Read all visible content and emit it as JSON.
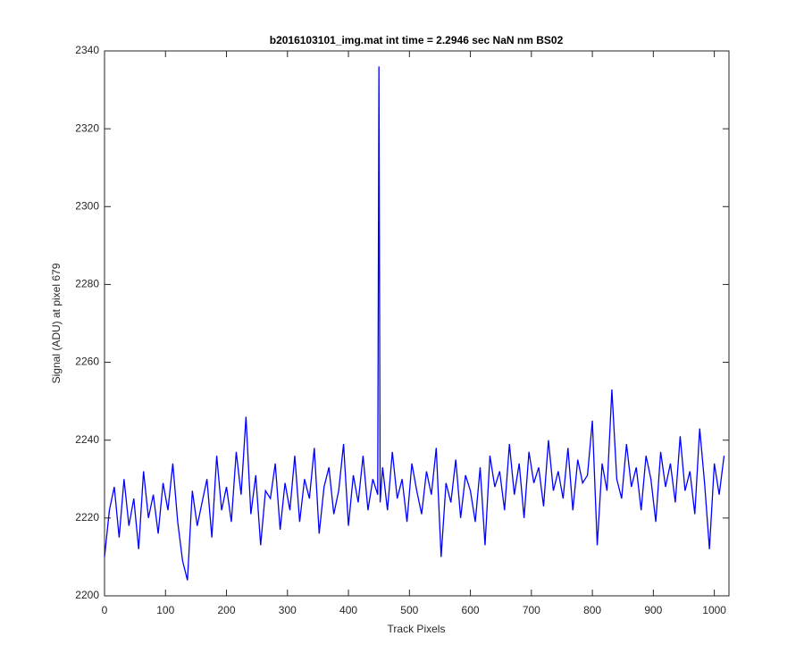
{
  "chart_data": {
    "type": "line",
    "title": "b2016103101_img.mat int time = 2.2946 sec  NaN nm BS02",
    "x_label": "Track Pixels",
    "y_label": "Signal (ADU) at pixel 679",
    "xlim": [
      0,
      1024
    ],
    "ylim": [
      2200,
      2340
    ],
    "xticks": [
      0,
      100,
      200,
      300,
      400,
      500,
      600,
      700,
      800,
      900,
      1000
    ],
    "yticks": [
      2200,
      2220,
      2240,
      2260,
      2280,
      2300,
      2320,
      2340
    ],
    "grid": false,
    "series": [
      {
        "color": "#0000ff",
        "x": [
          0,
          8,
          16,
          24,
          32,
          40,
          48,
          56,
          64,
          72,
          80,
          88,
          96,
          104,
          112,
          120,
          128,
          136,
          144,
          152,
          160,
          168,
          176,
          184,
          192,
          200,
          208,
          216,
          224,
          232,
          240,
          248,
          256,
          264,
          272,
          280,
          288,
          296,
          304,
          312,
          320,
          328,
          336,
          344,
          352,
          360,
          368,
          376,
          384,
          392,
          400,
          408,
          416,
          424,
          432,
          440,
          448,
          450,
          452,
          456,
          464,
          472,
          480,
          488,
          496,
          504,
          512,
          520,
          528,
          536,
          544,
          552,
          560,
          568,
          576,
          584,
          592,
          600,
          608,
          616,
          624,
          632,
          640,
          648,
          656,
          664,
          672,
          680,
          688,
          696,
          704,
          712,
          720,
          728,
          736,
          744,
          752,
          760,
          768,
          776,
          784,
          792,
          800,
          808,
          816,
          824,
          832,
          840,
          848,
          856,
          864,
          872,
          880,
          888,
          896,
          904,
          912,
          920,
          928,
          936,
          944,
          952,
          960,
          968,
          976,
          984,
          992,
          1000,
          1008,
          1016
        ],
        "values": [
          2210,
          2222,
          2228,
          2215,
          2230,
          2218,
          2225,
          2212,
          2232,
          2220,
          2226,
          2216,
          2229,
          2222,
          2234,
          2219,
          2209,
          2204,
          2227,
          2218,
          2224,
          2230,
          2215,
          2236,
          2222,
          2228,
          2219,
          2237,
          2226,
          2246,
          2221,
          2231,
          2213,
          2227,
          2225,
          2234,
          2217,
          2229,
          2222,
          2236,
          2219,
          2230,
          2225,
          2238,
          2216,
          2228,
          2233,
          2221,
          2227,
          2239,
          2218,
          2231,
          2224,
          2236,
          2222,
          2230,
          2226,
          2336,
          2224,
          2233,
          2222,
          2237,
          2225,
          2230,
          2219,
          2234,
          2227,
          2221,
          2232,
          2226,
          2238,
          2210,
          2229,
          2224,
          2235,
          2220,
          2231,
          2227,
          2219,
          2233,
          2213,
          2236,
          2228,
          2232,
          2222,
          2239,
          2226,
          2234,
          2220,
          2237,
          2229,
          2233,
          2223,
          2240,
          2227,
          2232,
          2225,
          2238,
          2222,
          2235,
          2229,
          2231,
          2245,
          2213,
          2234,
          2227,
          2253,
          2230,
          2225,
          2239,
          2228,
          2233,
          2222,
          2236,
          2230,
          2219,
          2237,
          2228,
          2234,
          2224,
          2241,
          2227,
          2232,
          2221,
          2243,
          2229,
          2212,
          2234,
          2226,
          2236
        ]
      }
    ]
  }
}
